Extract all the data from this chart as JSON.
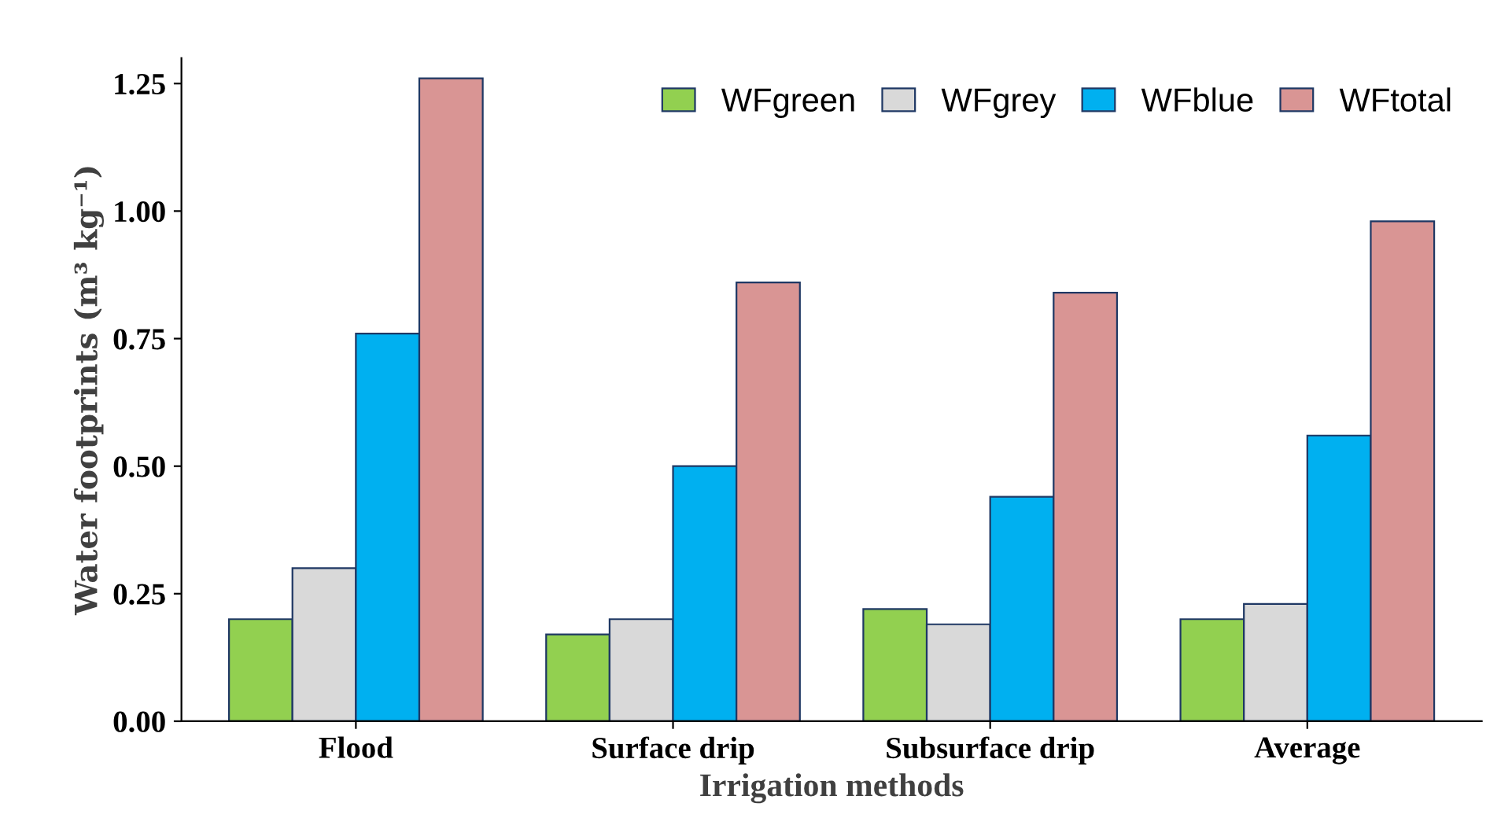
{
  "chart_data": {
    "type": "bar",
    "xlabel": "Irrigation methods",
    "ylabel": "Water footprints (m³ kg⁻¹)",
    "categories": [
      "Flood",
      "Surface drip",
      "Subsurface drip",
      "Average"
    ],
    "series": [
      {
        "name": "WFgreen",
        "color": "#92d050",
        "values": [
          0.2,
          0.17,
          0.22,
          0.2
        ]
      },
      {
        "name": "WFgrey",
        "color": "#d9d9d9",
        "values": [
          0.3,
          0.2,
          0.19,
          0.23
        ]
      },
      {
        "name": "WFblue",
        "color": "#00b0f0",
        "values": [
          0.76,
          0.5,
          0.44,
          0.56
        ]
      },
      {
        "name": "WFtotal",
        "color": "#d99594",
        "values": [
          1.26,
          0.86,
          0.84,
          0.98
        ]
      }
    ],
    "ylim": [
      0,
      1.3
    ],
    "yticks": [
      {
        "value": 0,
        "label": "0.00"
      },
      {
        "value": 0.25,
        "label": "0.25"
      },
      {
        "value": 0.5,
        "label": "0.50"
      },
      {
        "value": 0.75,
        "label": "0.75"
      },
      {
        "value": 1,
        "label": "1.00"
      },
      {
        "value": 1.25,
        "label": "1.25"
      }
    ],
    "grid": false,
    "legend": "top right"
  }
}
